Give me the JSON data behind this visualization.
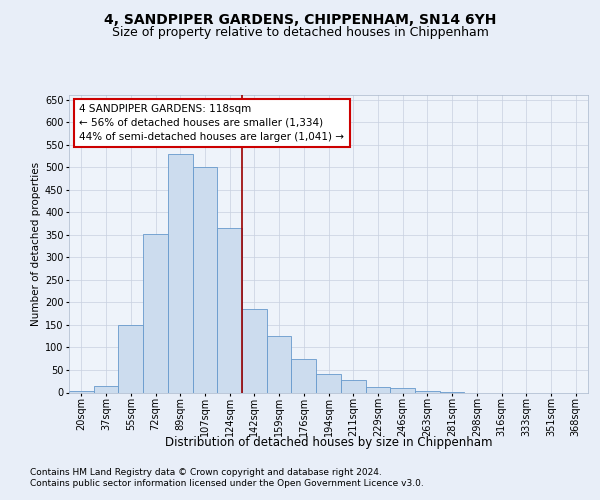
{
  "title1": "4, SANDPIPER GARDENS, CHIPPENHAM, SN14 6YH",
  "title2": "Size of property relative to detached houses in Chippenham",
  "xlabel": "Distribution of detached houses by size in Chippenham",
  "ylabel": "Number of detached properties",
  "bar_labels": [
    "20sqm",
    "37sqm",
    "55sqm",
    "72sqm",
    "89sqm",
    "107sqm",
    "124sqm",
    "142sqm",
    "159sqm",
    "176sqm",
    "194sqm",
    "211sqm",
    "229sqm",
    "246sqm",
    "263sqm",
    "281sqm",
    "298sqm",
    "316sqm",
    "333sqm",
    "351sqm",
    "368sqm"
  ],
  "bar_values": [
    3,
    15,
    150,
    352,
    530,
    500,
    365,
    185,
    125,
    75,
    40,
    28,
    13,
    10,
    3,
    1,
    0,
    0,
    0,
    0,
    0
  ],
  "bar_color": "#ccdcee",
  "bar_edge_color": "#6699cc",
  "vline_x": 6.5,
  "vline_color": "#990000",
  "annotation_text": "4 SANDPIPER GARDENS: 118sqm\n← 56% of detached houses are smaller (1,334)\n44% of semi-detached houses are larger (1,041) →",
  "annotation_box_color": "#ffffff",
  "annotation_box_edge": "#cc0000",
  "ylim": [
    0,
    660
  ],
  "yticks": [
    0,
    50,
    100,
    150,
    200,
    250,
    300,
    350,
    400,
    450,
    500,
    550,
    600,
    650
  ],
  "bg_color": "#e8eef8",
  "plot_bg_color": "#eef3fa",
  "grid_color": "#c8d0e0",
  "footer1": "Contains HM Land Registry data © Crown copyright and database right 2024.",
  "footer2": "Contains public sector information licensed under the Open Government Licence v3.0.",
  "title1_fontsize": 10,
  "title2_fontsize": 9,
  "xlabel_fontsize": 8.5,
  "ylabel_fontsize": 7.5,
  "tick_fontsize": 7,
  "ann_fontsize": 7.5,
  "footer_fontsize": 6.5
}
